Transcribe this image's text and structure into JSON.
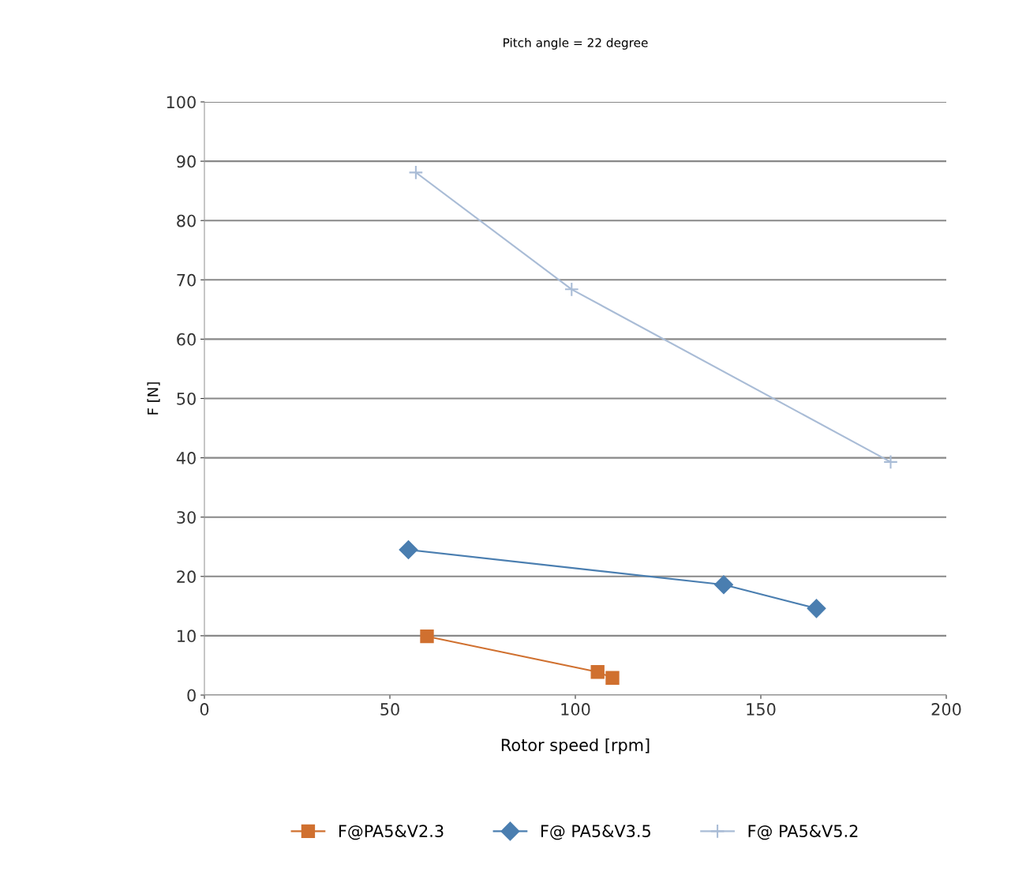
{
  "chart_data": {
    "type": "line",
    "title": "Pitch angle = 22 degree",
    "xlabel": "Rotor speed [rpm]",
    "ylabel": "F [N]",
    "xlim": [
      0,
      200
    ],
    "xticks": [
      0,
      50,
      100,
      150,
      200
    ],
    "ylim": [
      0,
      100
    ],
    "yticks": [
      0,
      10,
      20,
      30,
      40,
      50,
      60,
      70,
      80,
      90,
      100
    ],
    "grid": "y",
    "legend": "bottom",
    "series": [
      {
        "name": "F@PA5&V2.3",
        "color": "#d0702f",
        "marker": "square",
        "x": [
          60,
          106,
          110
        ],
        "values": [
          9.9,
          3.9,
          2.9
        ]
      },
      {
        "name": "F@ PA5&V3.5",
        "color": "#4a7eb0",
        "marker": "diamond",
        "x": [
          55,
          140,
          165
        ],
        "values": [
          24.5,
          18.6,
          14.6
        ]
      },
      {
        "name": "F@ PA5&V5.2",
        "color": "#a9bcd6",
        "marker": "cross",
        "x": [
          57,
          99,
          185
        ],
        "values": [
          88.1,
          68.4,
          39.3
        ]
      }
    ]
  }
}
